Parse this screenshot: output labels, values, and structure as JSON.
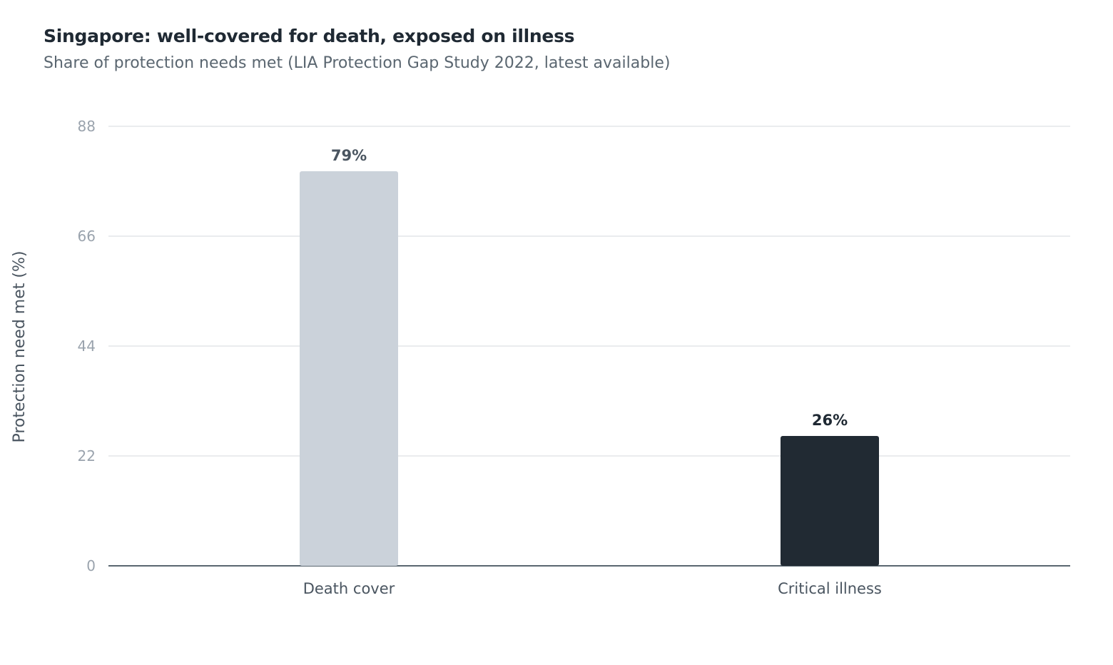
{
  "chart_data": {
    "type": "bar",
    "title": "Singapore: well-covered for death, exposed on illness",
    "subtitle": "Share of protection needs met (LIA Protection Gap Study 2022, latest available)",
    "xlabel": "",
    "ylabel": "Protection need met (%)",
    "categories": [
      "Death cover",
      "Critical illness"
    ],
    "values": [
      79,
      26
    ],
    "value_labels": [
      "79%",
      "26%"
    ],
    "bar_colors": [
      "#cbd2da",
      "#212a33"
    ],
    "value_label_colors": [
      "#4a5560",
      "#1f2933"
    ],
    "ylim": [
      0,
      88
    ],
    "yticks": [
      0,
      22,
      44,
      66,
      88
    ],
    "grid": true,
    "legend": "none"
  },
  "colors": {
    "gridline": "#e3e6e9",
    "baseline": "#5a6670"
  }
}
